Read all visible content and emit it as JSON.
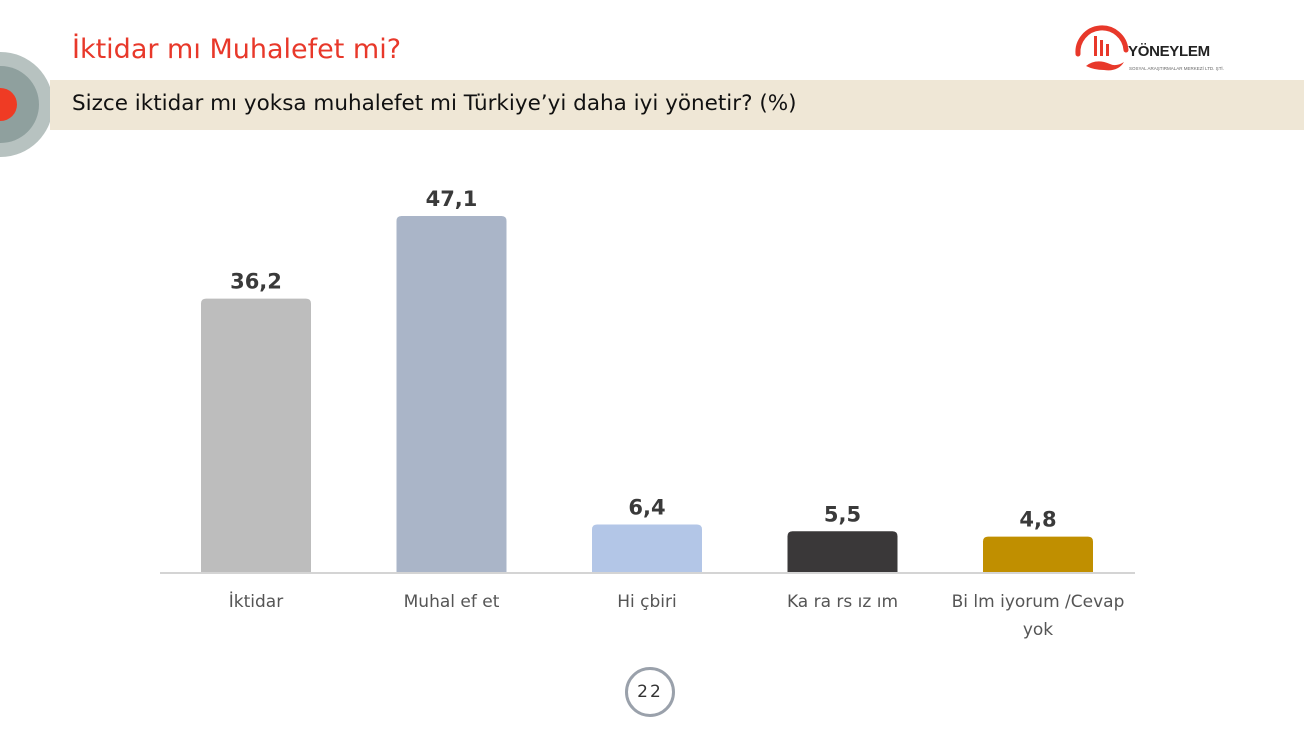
{
  "header": {
    "title": "İktidar mı Muhalefet mi?",
    "subtitle": "Sizce iktidar mı yoksa muhalefet mi Türkiye’yi daha iyi yönetir? (%)"
  },
  "logo": {
    "name": "YÖNEYLEM",
    "tagline": "SOSYAL ARAŞTIRMALAR MERKEZİ LTD. ŞTİ.",
    "accent_color": "#e8382a"
  },
  "page_number": "22",
  "colors": {
    "title": "#e8382a",
    "subtitle_band": "#efe7d6",
    "deco_dot": "#ef3b24"
  },
  "chart_data": {
    "type": "bar",
    "title": "",
    "xlabel": "",
    "ylabel": "",
    "ylim": [
      0,
      50
    ],
    "grid": false,
    "categories": [
      [
        "İktidar"
      ],
      [
        "Muhal ef et"
      ],
      [
        "Hi çbiri"
      ],
      [
        "Ka ra rs ız ım"
      ],
      [
        "Bi lm iyorum /Cevap",
        "yok"
      ]
    ],
    "values": [
      36.2,
      47.1,
      6.4,
      5.5,
      4.8
    ],
    "value_labels": [
      "36,2",
      "47,1",
      "6,4",
      "5,5",
      "4,8"
    ],
    "bar_colors": [
      "#bdbdbd",
      "#aab5c8",
      "#b3c6e7",
      "#3a3839",
      "#c08f00"
    ]
  }
}
